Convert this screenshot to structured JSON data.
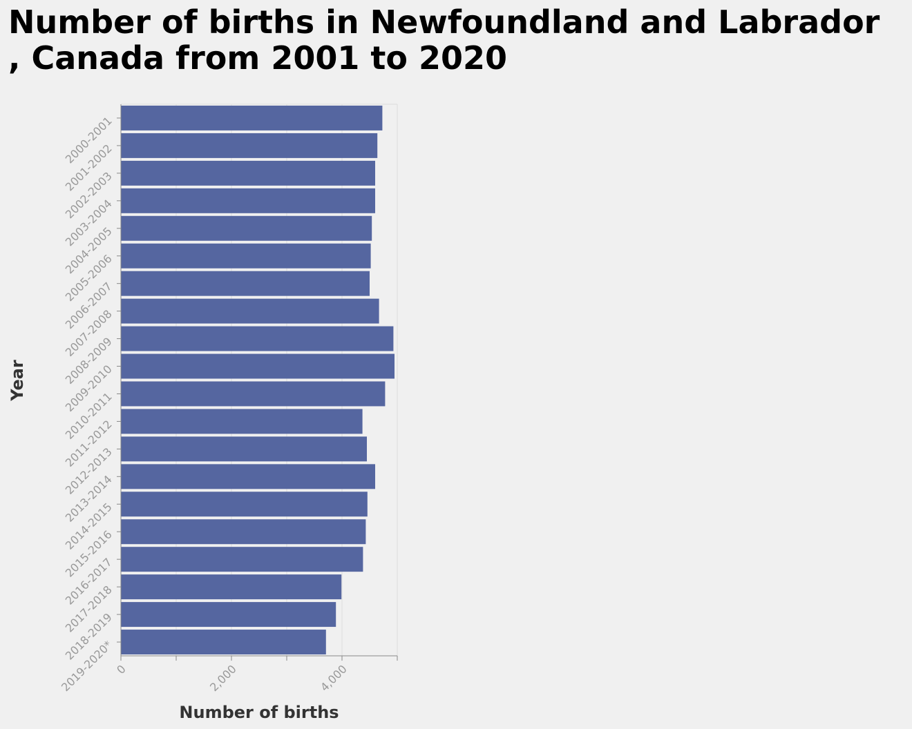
{
  "chart_data": {
    "type": "bar",
    "orientation": "horizontal",
    "title_lines": [
      "Number of births in Newfoundland and Labrador",
      ", Canada from 2001 to 2020"
    ],
    "xlabel": "Number of births",
    "ylabel": "Year",
    "xlim": [
      0,
      5000
    ],
    "xticks": [
      0,
      1000,
      2000,
      3000,
      4000,
      5000
    ],
    "xtick_labels": [
      "0",
      "",
      "2,000",
      "",
      "4,000",
      ""
    ],
    "categories": [
      "2000-2001",
      "2001-2002",
      "2002-2003",
      "2003-2004",
      "2004-2005",
      "2005-2006",
      "2006-2007",
      "2007-2008",
      "2008-2009",
      "2009-2010",
      "2010-2011",
      "2011-2012",
      "2012-2013",
      "2013-2014",
      "2014-2015",
      "2015-2016",
      "2016-2017",
      "2017-2018",
      "2018-2019",
      "2019-2020*"
    ],
    "values": [
      4730,
      4640,
      4600,
      4600,
      4540,
      4520,
      4500,
      4670,
      4930,
      4950,
      4780,
      4370,
      4450,
      4600,
      4460,
      4430,
      4380,
      3990,
      3890,
      3710
    ],
    "bar_color": "#5566a0",
    "grid": true
  }
}
